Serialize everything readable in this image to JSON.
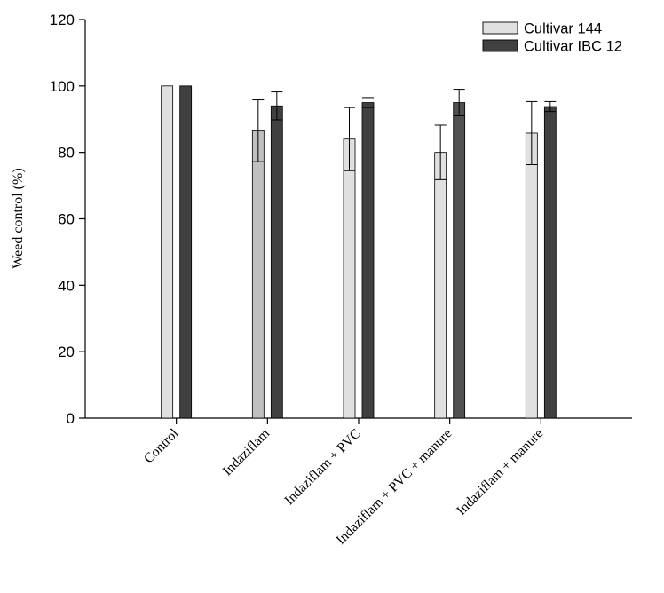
{
  "chart_data": {
    "type": "bar",
    "title": "",
    "xlabel": "",
    "ylabel": "Weed control (%)",
    "ylim": [
      0,
      120
    ],
    "yticks": [
      0,
      20,
      40,
      60,
      80,
      100,
      120
    ],
    "grid": false,
    "legend_position": "top-right",
    "categories": [
      "Control",
      "Indaziflam",
      "Indaziflam + PVC",
      "Indaziflam + PVC + manure",
      "Indaziflam + manure"
    ],
    "series": [
      {
        "name": "Cultivar 144",
        "color": "#e0e0e0",
        "values": [
          100,
          86.5,
          84,
          80,
          85.8
        ],
        "error": [
          0,
          9.3,
          9.5,
          8.2,
          9.5
        ]
      },
      {
        "name": "Cultivar IBC 12",
        "color": "#404040",
        "values": [
          100,
          94,
          95,
          95,
          93.8
        ],
        "error": [
          0,
          4.2,
          1.5,
          4.0,
          1.5
        ]
      }
    ],
    "bar_fill_overrides": [
      {
        "series": 0,
        "category": 1,
        "color": "#c0c0c0"
      },
      {
        "series": 1,
        "category": 3,
        "color": "#505050"
      }
    ]
  }
}
